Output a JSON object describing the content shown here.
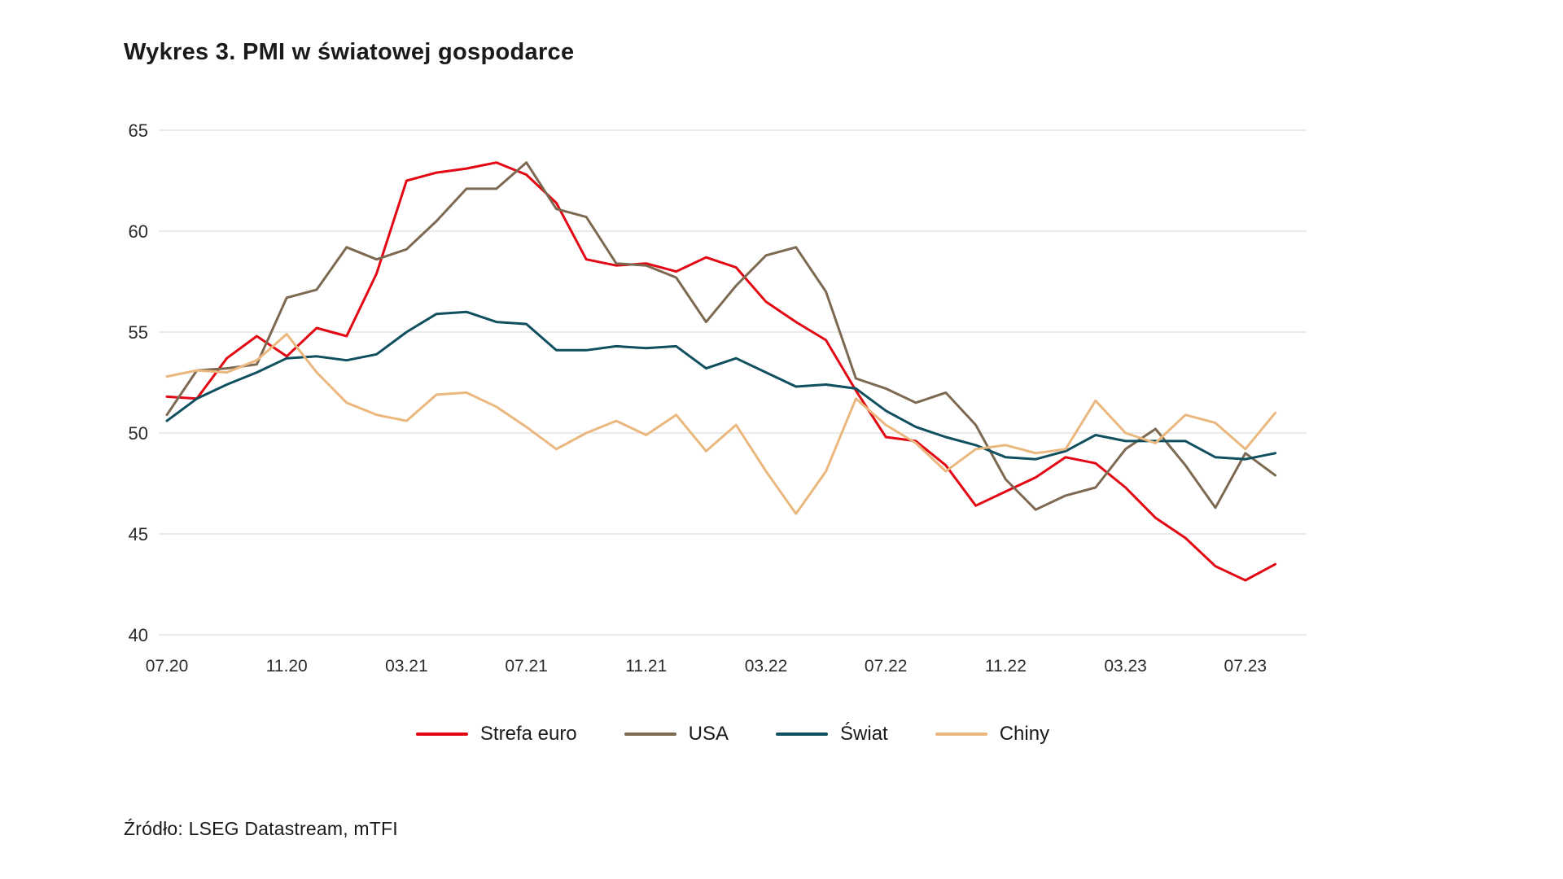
{
  "page": {
    "background": "#ffffff",
    "source": "Źródło: LSEG Datastream, mTFI"
  },
  "chart_data": {
    "type": "line",
    "title": "Wykres 3. PMI w światowej gospodarce",
    "xlabel": "",
    "ylabel": "",
    "ylim": [
      40,
      65
    ],
    "y_ticks": [
      40,
      45,
      50,
      55,
      60,
      65
    ],
    "grid": "horizontal",
    "gridline_color": "#e4e4e4",
    "axis_text_color": "#2b2b2b",
    "legend_position": "bottom",
    "x": [
      "07.20",
      "08.20",
      "09.20",
      "10.20",
      "11.20",
      "12.20",
      "01.21",
      "02.21",
      "03.21",
      "04.21",
      "05.21",
      "06.21",
      "07.21",
      "08.21",
      "09.21",
      "10.21",
      "11.21",
      "12.21",
      "01.22",
      "02.22",
      "03.22",
      "04.22",
      "05.22",
      "06.22",
      "07.22",
      "08.22",
      "09.22",
      "10.22",
      "11.22",
      "12.22",
      "01.23",
      "02.23",
      "03.23",
      "04.23",
      "05.23",
      "06.23",
      "07.23",
      "08.23"
    ],
    "x_tick_labels": [
      "07.20",
      "11.20",
      "03.21",
      "07.21",
      "11.21",
      "03.22",
      "07.22",
      "11.22",
      "03.23",
      "07.23"
    ],
    "x_tick_every": 4,
    "series": [
      {
        "name": "Strefa euro",
        "color": "#e30613",
        "values": [
          51.8,
          51.7,
          53.7,
          54.8,
          53.8,
          55.2,
          54.8,
          57.9,
          62.5,
          62.9,
          63.1,
          63.4,
          62.8,
          61.4,
          58.6,
          58.3,
          58.4,
          58.0,
          58.7,
          58.2,
          56.5,
          55.5,
          54.6,
          52.1,
          49.8,
          49.6,
          48.4,
          46.4,
          47.1,
          47.8,
          48.8,
          48.5,
          47.3,
          45.8,
          44.8,
          43.4,
          42.7,
          43.5
        ]
      },
      {
        "name": "USA",
        "color": "#7d6951",
        "values": [
          50.9,
          53.1,
          53.2,
          53.4,
          56.7,
          57.1,
          59.2,
          58.6,
          59.1,
          60.5,
          62.1,
          62.1,
          63.4,
          61.1,
          60.7,
          58.4,
          58.3,
          57.7,
          55.5,
          57.3,
          58.8,
          59.2,
          57.0,
          52.7,
          52.2,
          51.5,
          52.0,
          50.4,
          47.7,
          46.2,
          46.9,
          47.3,
          49.2,
          50.2,
          48.4,
          46.3,
          49.0,
          47.9
        ]
      },
      {
        "name": "Świat",
        "color": "#0f4f5f",
        "values": [
          50.6,
          51.7,
          52.4,
          53.0,
          53.7,
          53.8,
          53.6,
          53.9,
          55.0,
          55.9,
          56.0,
          55.5,
          55.4,
          54.1,
          54.1,
          54.3,
          54.2,
          54.3,
          53.2,
          53.7,
          53.0,
          52.3,
          52.4,
          52.2,
          51.1,
          50.3,
          49.8,
          49.4,
          48.8,
          48.7,
          49.1,
          49.9,
          49.6,
          49.6,
          49.6,
          48.8,
          48.7,
          49.0
        ]
      },
      {
        "name": "Chiny",
        "color": "#eab87e",
        "values": [
          52.8,
          53.1,
          53.0,
          53.6,
          54.9,
          53.0,
          51.5,
          50.9,
          50.6,
          51.9,
          52.0,
          51.3,
          50.3,
          49.2,
          50.0,
          50.6,
          49.9,
          50.9,
          49.1,
          50.4,
          48.1,
          46.0,
          48.1,
          51.7,
          50.4,
          49.5,
          48.1,
          49.2,
          49.4,
          49.0,
          49.2,
          51.6,
          50.0,
          49.5,
          50.9,
          50.5,
          49.2,
          51.0
        ]
      }
    ]
  }
}
